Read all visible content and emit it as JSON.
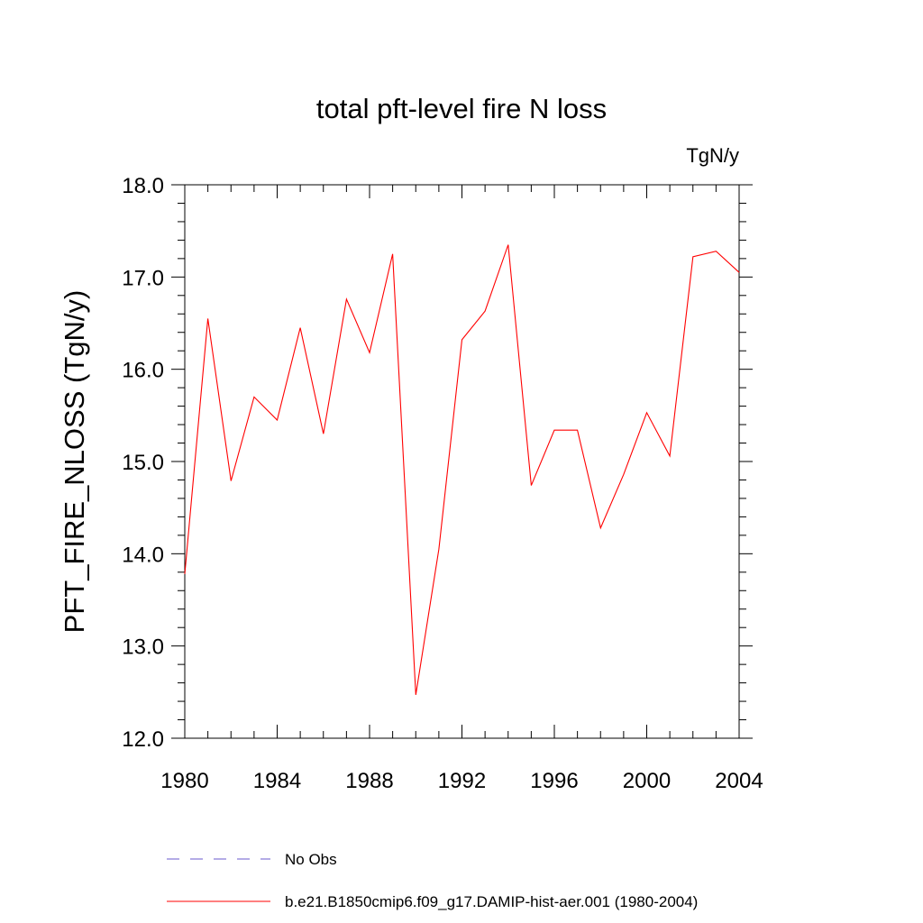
{
  "chart_data": {
    "type": "line",
    "title": "total pft-level fire N loss",
    "units_label": "TgN/y",
    "xlabel": "",
    "ylabel": "PFT_FIRE_NLOSS  (TgN/y)",
    "xlim": [
      1980,
      2004
    ],
    "ylim": [
      12.0,
      18.0
    ],
    "x_ticks": [
      1980,
      1984,
      1988,
      1992,
      1996,
      2000,
      2004
    ],
    "x_tick_labels": [
      "1980",
      "1984",
      "1988",
      "1992",
      "1996",
      "2000",
      "2004"
    ],
    "y_ticks": [
      12.0,
      13.0,
      14.0,
      15.0,
      16.0,
      17.0,
      18.0
    ],
    "y_tick_labels": [
      "12.0",
      "13.0",
      "14.0",
      "15.0",
      "16.0",
      "17.0",
      "18.0"
    ],
    "grid": false,
    "legend_position": "bottom",
    "legend": [
      {
        "label": "No Obs",
        "color": "#6a5acd",
        "dash": "dashed"
      },
      {
        "label": "b.e21.B1850cmip6.f09_g17.DAMIP-hist-aer.001 (1980-2004)",
        "color": "#ff0000",
        "dash": "solid"
      }
    ],
    "series": [
      {
        "name": "b.e21.B1850cmip6.f09_g17.DAMIP-hist-aer.001 (1980-2004)",
        "color": "#ff0000",
        "x": [
          1980,
          1981,
          1982,
          1983,
          1984,
          1985,
          1986,
          1987,
          1988,
          1989,
          1990,
          1991,
          1992,
          1993,
          1994,
          1995,
          1996,
          1997,
          1998,
          1999,
          2000,
          2001,
          2002,
          2003,
          2004
        ],
        "y": [
          13.78,
          16.55,
          14.79,
          15.7,
          15.45,
          16.45,
          15.3,
          16.76,
          16.18,
          17.25,
          12.47,
          14.05,
          16.32,
          16.63,
          17.35,
          14.74,
          15.34,
          15.34,
          14.28,
          14.86,
          15.53,
          15.06,
          17.22,
          17.28,
          17.05
        ]
      }
    ]
  }
}
